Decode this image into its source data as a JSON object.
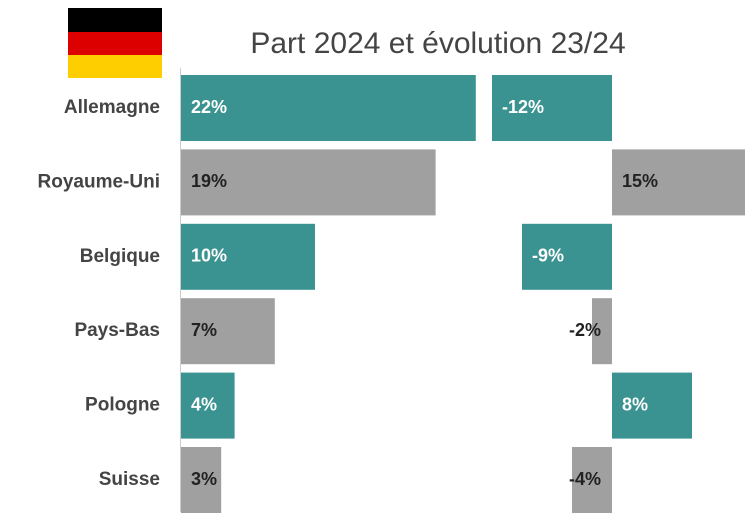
{
  "chart_data": {
    "type": "bar",
    "title": "Part 2024 et évolution 23/24",
    "categories": [
      "Allemagne",
      "Royaume-Uni",
      "Belgique",
      "Pays-Bas",
      "Pologne",
      "Suisse"
    ],
    "colors": [
      "#3b9391",
      "#a0a0a0",
      "#3b9391",
      "#a0a0a0",
      "#3b9391",
      "#a0a0a0"
    ],
    "series": [
      {
        "values": [
          22,
          19,
          10,
          7,
          4,
          3
        ],
        "value_labels": [
          "22%",
          "19%",
          "10%",
          "7%",
          "4%",
          "3%"
        ]
      },
      {
        "values": [
          -12,
          15,
          -9,
          -2,
          8,
          -4
        ],
        "value_labels": [
          "-12%",
          "15%",
          "-9%",
          "-2%",
          "8%",
          "-4%"
        ]
      }
    ]
  }
}
